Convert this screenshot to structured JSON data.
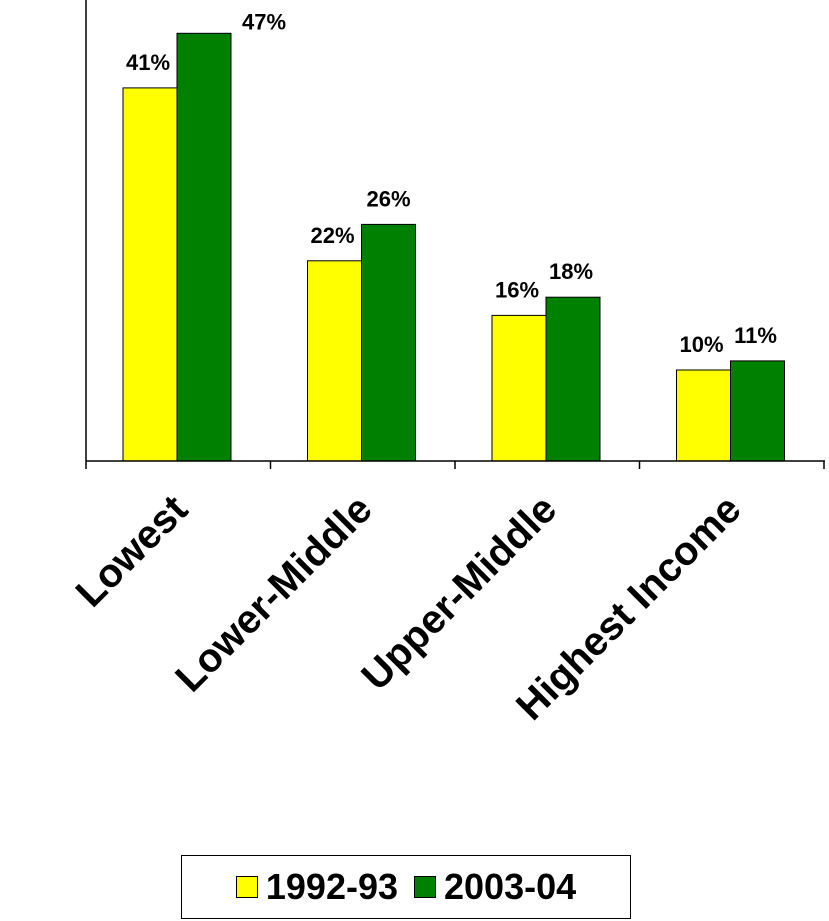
{
  "chart_data": {
    "type": "bar",
    "categories": [
      "Lowest",
      "Lower-Middle",
      "Upper-Middle",
      "Highest Income"
    ],
    "series": [
      {
        "name": "1992-93",
        "values": [
          41,
          22,
          16,
          10
        ],
        "labels": [
          "41%",
          "22%",
          "16%",
          "10%"
        ],
        "color": "#FFFF00"
      },
      {
        "name": "2003-04",
        "values": [
          47,
          26,
          18,
          11
        ],
        "labels": [
          "47%",
          "26%",
          "18%",
          "11%"
        ],
        "color": "#008000"
      }
    ],
    "title": "",
    "xlabel": "",
    "ylabel": "",
    "ylim": [
      0,
      50
    ],
    "grid": false,
    "legend_position": "bottom"
  }
}
